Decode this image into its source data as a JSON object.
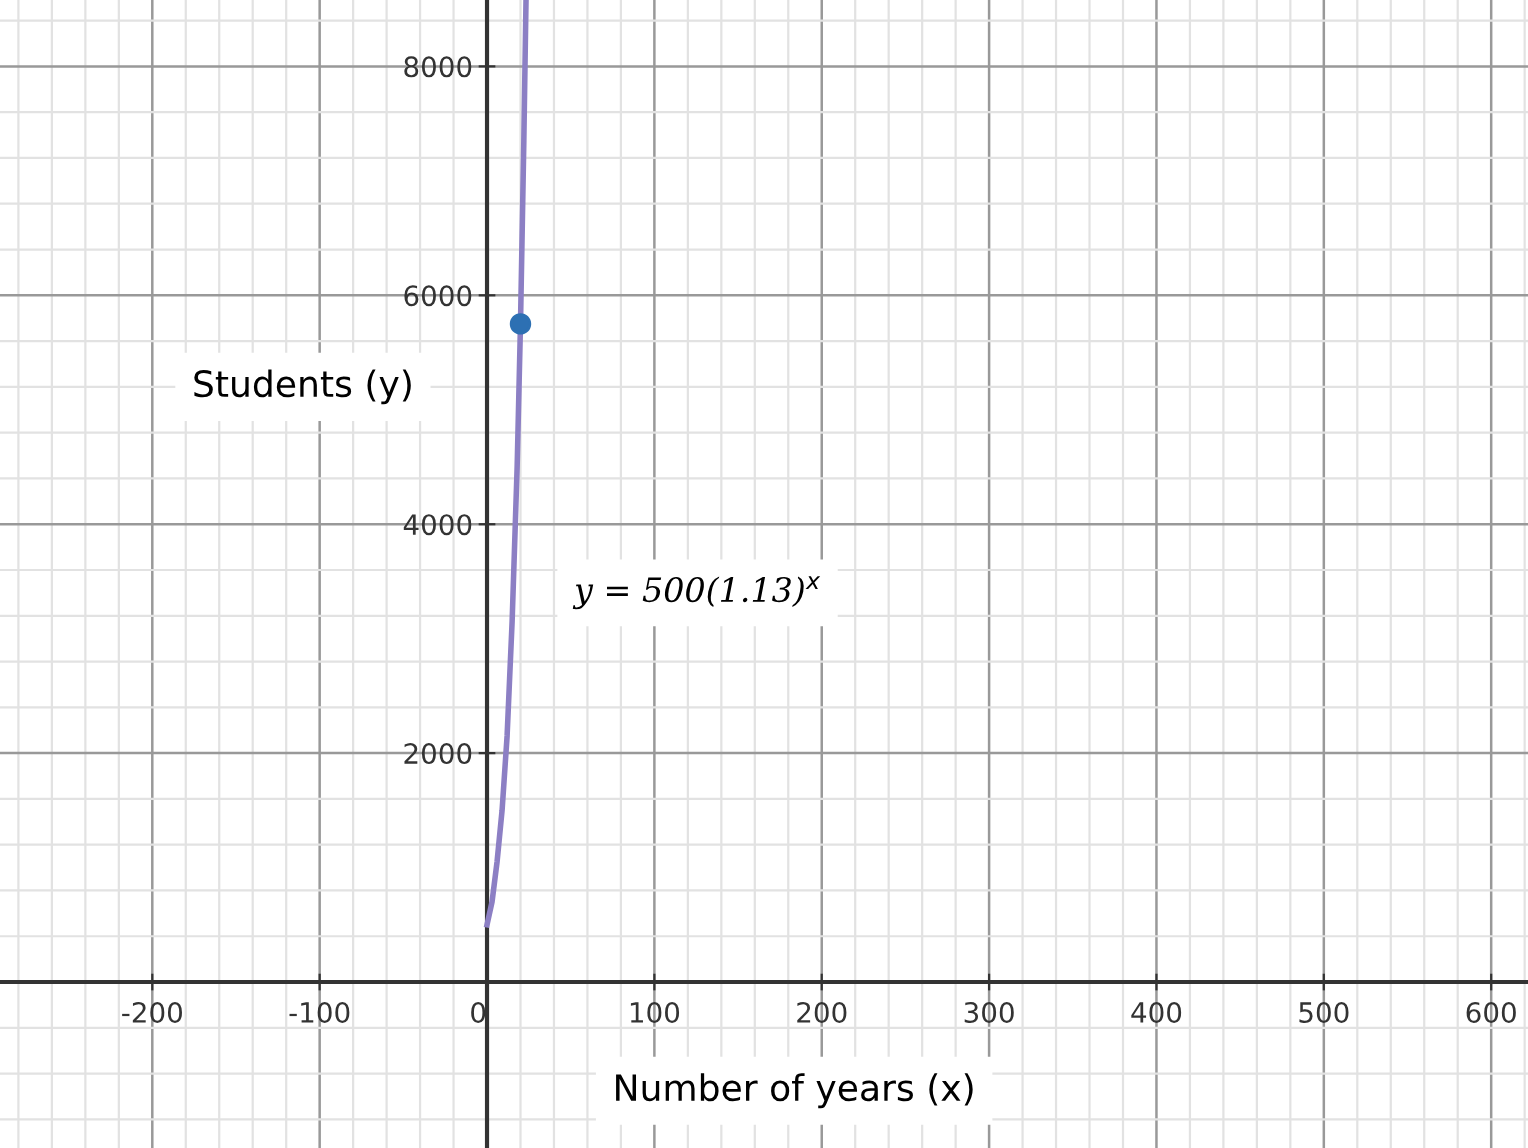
{
  "chart_data": {
    "type": "line",
    "xlabel": "Number of years (x)",
    "ylabel": "Students (y)",
    "annotations": [
      "y = 500(1.13)$^{x}$"
    ],
    "series": [
      {
        "color": "#8c7fc4",
        "x": [
          0,
          3,
          6,
          9,
          12,
          15,
          18,
          20,
          22,
          23.3
        ],
        "values": [
          500,
          700,
          1050,
          1500,
          2150,
          3150,
          4500,
          5750,
          7350,
          8580
        ]
      },
      {
        "type": "scatter",
        "marker": "circle",
        "color": "#2d70b3",
        "x": [
          20
        ],
        "values": [
          5750
        ]
      }
    ],
    "xlim": [
      -291,
      622
    ],
    "ylim": [
      -1450,
      8580
    ],
    "xticks": [
      -200,
      -100,
      0,
      100,
      200,
      300,
      400,
      500,
      600
    ],
    "yticks": [
      2000,
      4000,
      6000,
      8000
    ],
    "grid": true
  }
}
